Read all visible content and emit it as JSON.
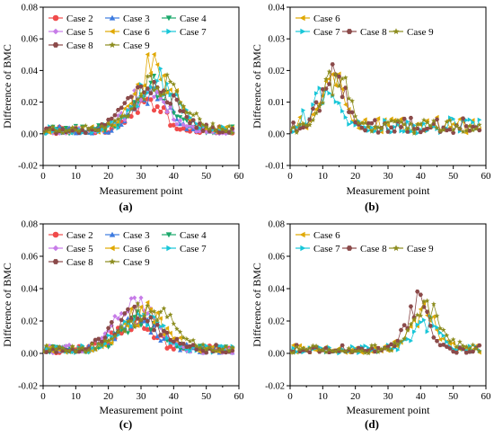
{
  "figure": {
    "panels": [
      {
        "id": "a",
        "caption": "(a)",
        "xlabel": "Measurement point",
        "ylabel": "Difference of BMC",
        "xlim": [
          0,
          60
        ],
        "ylim": [
          -0.02,
          0.08
        ],
        "xticks": [
          "0",
          "10",
          "20",
          "30",
          "40",
          "50",
          "60"
        ],
        "yticks": [
          "-0.02",
          "0.00",
          "0.02",
          "0.04",
          "0.06",
          "0.08"
        ],
        "legend_cols": 3,
        "series": [
          "Case 2",
          "Case 3",
          "Case 4",
          "Case 5",
          "Case 6",
          "Case 7",
          "Case 8",
          "Case 9"
        ]
      },
      {
        "id": "b",
        "caption": "(b)",
        "xlabel": "Measurement point",
        "ylabel": "Difference of BMC",
        "xlim": [
          0,
          60
        ],
        "ylim": [
          -0.01,
          0.04
        ],
        "xticks": [
          "0",
          "10",
          "20",
          "30",
          "40",
          "50",
          "60"
        ],
        "yticks": [
          "-0.01",
          "0.00",
          "0.01",
          "0.02",
          "0.03",
          "0.04"
        ],
        "legend_cols": 4,
        "series": [
          "Case 6",
          "Case 7",
          "Case 8",
          "Case 9"
        ]
      },
      {
        "id": "c",
        "caption": "(c)",
        "xlabel": "Measurement point",
        "ylabel": "Difference of BMC",
        "xlim": [
          0,
          60
        ],
        "ylim": [
          -0.02,
          0.08
        ],
        "xticks": [
          "0",
          "10",
          "20",
          "30",
          "40",
          "50",
          "60"
        ],
        "yticks": [
          "-0.02",
          "0.00",
          "0.02",
          "0.04",
          "0.06",
          "0.08"
        ],
        "legend_cols": 3,
        "series": [
          "Case 2",
          "Case 3",
          "Case 4",
          "Case 5",
          "Case 6",
          "Case 7",
          "Case 8",
          "Case 9"
        ]
      },
      {
        "id": "d",
        "caption": "(d)",
        "xlabel": "Measurement point",
        "ylabel": "Difference of BMC",
        "xlim": [
          0,
          60
        ],
        "ylim": [
          -0.02,
          0.08
        ],
        "xticks": [
          "0",
          "10",
          "20",
          "30",
          "40",
          "50",
          "60"
        ],
        "yticks": [
          "-0.02",
          "0.00",
          "0.02",
          "0.04",
          "0.06",
          "0.08"
        ],
        "legend_cols": 4,
        "series": [
          "Case 6",
          "Case 7",
          "Case 8",
          "Case 9"
        ]
      }
    ]
  },
  "series_styles": {
    "Case 2": {
      "color": "#f04b4b",
      "marker": "circle"
    },
    "Case 3": {
      "color": "#3d7be0",
      "marker": "triangle-up"
    },
    "Case 4": {
      "color": "#1aa86a",
      "marker": "triangle-down"
    },
    "Case 5": {
      "color": "#c77ce8",
      "marker": "diamond"
    },
    "Case 6": {
      "color": "#e0a800",
      "marker": "triangle-left"
    },
    "Case 7": {
      "color": "#18c6d8",
      "marker": "triangle-right"
    },
    "Case 8": {
      "color": "#8b4a4a",
      "marker": "hexagon"
    },
    "Case 9": {
      "color": "#8c8c1e",
      "marker": "star"
    }
  },
  "chart_data": [
    {
      "panel": "a",
      "type": "line",
      "xlabel": "Measurement point",
      "ylabel": "Difference of BMC",
      "xlim": [
        0,
        60
      ],
      "ylim": [
        -0.02,
        0.08
      ],
      "grid": false,
      "legend": "top-left",
      "peaks": [
        {
          "name": "Case 2",
          "center": 32,
          "peak": 0.022,
          "width": 5
        },
        {
          "name": "Case 3",
          "center": 33,
          "peak": 0.031,
          "width": 5
        },
        {
          "name": "Case 4",
          "center": 34,
          "peak": 0.036,
          "width": 5.5
        },
        {
          "name": "Case 5",
          "center": 32,
          "peak": 0.03,
          "width": 6
        },
        {
          "name": "Case 6",
          "center": 34,
          "peak": 0.049,
          "width": 6
        },
        {
          "name": "Case 7",
          "center": 35,
          "peak": 0.04,
          "width": 6
        },
        {
          "name": "Case 8",
          "center": 33,
          "peak": 0.035,
          "width": 7
        },
        {
          "name": "Case 9",
          "center": 35,
          "peak": 0.038,
          "width": 7
        }
      ]
    },
    {
      "panel": "b",
      "type": "line",
      "xlabel": "Measurement point",
      "ylabel": "Difference of BMC",
      "xlim": [
        0,
        60
      ],
      "ylim": [
        -0.01,
        0.04
      ],
      "grid": false,
      "legend": "top-left",
      "peaks": [
        {
          "name": "Case 6",
          "center": 13,
          "peak": 0.02,
          "width": 3.5
        },
        {
          "name": "Case 7",
          "center": 11,
          "peak": 0.014,
          "width": 4
        },
        {
          "name": "Case 8",
          "center": 13,
          "peak": 0.022,
          "width": 3.5
        },
        {
          "name": "Case 9",
          "center": 14,
          "peak": 0.021,
          "width": 4
        }
      ]
    },
    {
      "panel": "c",
      "type": "line",
      "xlabel": "Measurement point",
      "ylabel": "Difference of BMC",
      "xlim": [
        0,
        60
      ],
      "ylim": [
        -0.02,
        0.08
      ],
      "grid": false,
      "legend": "top-left",
      "peaks": [
        {
          "name": "Case 2",
          "center": 28,
          "peak": 0.02,
          "width": 6
        },
        {
          "name": "Case 3",
          "center": 29,
          "peak": 0.025,
          "width": 5.5
        },
        {
          "name": "Case 4",
          "center": 30,
          "peak": 0.027,
          "width": 5.5
        },
        {
          "name": "Case 5",
          "center": 28,
          "peak": 0.038,
          "width": 6
        },
        {
          "name": "Case 6",
          "center": 31,
          "peak": 0.03,
          "width": 6
        },
        {
          "name": "Case 7",
          "center": 30,
          "peak": 0.028,
          "width": 6
        },
        {
          "name": "Case 8",
          "center": 29,
          "peak": 0.03,
          "width": 7
        },
        {
          "name": "Case 9",
          "center": 33,
          "peak": 0.031,
          "width": 7
        }
      ]
    },
    {
      "panel": "d",
      "type": "line",
      "xlabel": "Measurement point",
      "ylabel": "Difference of BMC",
      "xlim": [
        0,
        60
      ],
      "ylim": [
        -0.02,
        0.08
      ],
      "grid": false,
      "legend": "top-left",
      "peaks": [
        {
          "name": "Case 6",
          "center": 41,
          "peak": 0.03,
          "width": 4
        },
        {
          "name": "Case 7",
          "center": 42,
          "peak": 0.022,
          "width": 4
        },
        {
          "name": "Case 8",
          "center": 39,
          "peak": 0.038,
          "width": 3.5
        },
        {
          "name": "Case 9",
          "center": 42,
          "peak": 0.035,
          "width": 4.5
        }
      ]
    }
  ]
}
